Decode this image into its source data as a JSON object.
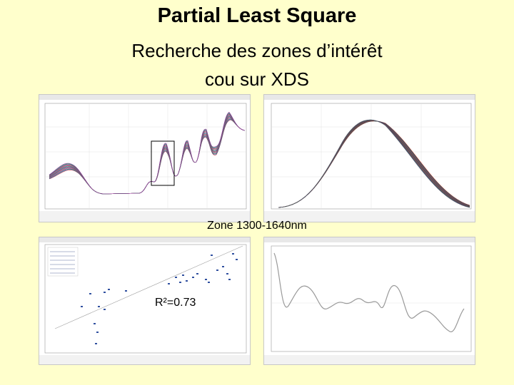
{
  "slide": {
    "title": "Partial Least Square",
    "subtitle_line1": "Recherche des zones d’intérêt",
    "subtitle_line2": "cou sur XDS",
    "zone_label": "Zone 1300-1640nm",
    "r2_label": "R²=0.73"
  },
  "panels": [
    {
      "name": "raw-spectra-chart",
      "description_colors": [
        "#c03030",
        "#3050c0",
        "#30a050",
        "#a030a0",
        "#808080"
      ]
    },
    {
      "name": "processed-spectra-chart",
      "description_colors": [
        "#d02020",
        "#208040",
        "#303090",
        "#606060"
      ]
    },
    {
      "name": "prediction-scatter-chart",
      "description_colors": [
        "#3050a0",
        "#909090"
      ]
    },
    {
      "name": "regression-coefficients-chart",
      "description_colors": [
        "#909090"
      ]
    }
  ]
}
